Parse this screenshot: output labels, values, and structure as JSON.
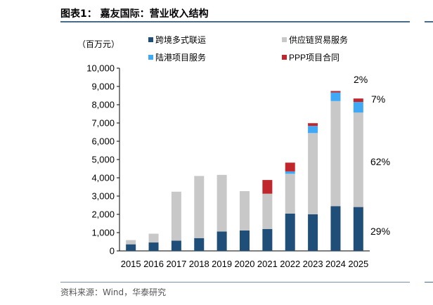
{
  "figure": {
    "title": "图表1：  嘉友国际：营业收入结构",
    "source": "资料来源：Wind，华泰研究"
  },
  "chart_data": {
    "type": "bar",
    "stacked": true,
    "unit_label": "（百万元）",
    "categories": [
      "2015",
      "2016",
      "2017",
      "2018",
      "2019",
      "2020",
      "2021",
      "2022",
      "2023",
      "2024",
      "2025"
    ],
    "ylim": [
      0,
      10000
    ],
    "yticks": [
      0,
      1000,
      2000,
      3000,
      4000,
      5000,
      6000,
      7000,
      8000,
      9000,
      10000
    ],
    "ytick_labels": [
      "0",
      "1,000",
      "2,000",
      "3,000",
      "4,000",
      "5,000",
      "6,000",
      "7,000",
      "8,000",
      "9,000",
      "10,000"
    ],
    "grid": false,
    "legend_position": "top",
    "series": [
      {
        "name": "跨境多式联运",
        "color": "#1f4e79",
        "values": [
          360,
          460,
          560,
          700,
          1060,
          1120,
          1200,
          2040,
          2000,
          2450,
          2400
        ]
      },
      {
        "name": "供应链贸易服务",
        "color": "#c8c8c8",
        "values": [
          230,
          480,
          2680,
          3400,
          3100,
          2150,
          1930,
          2180,
          4450,
          5750,
          5170
        ]
      },
      {
        "name": "陆港项目服务",
        "color": "#3fa9f5",
        "values": [
          0,
          0,
          0,
          0,
          0,
          0,
          0,
          130,
          390,
          470,
          580
        ]
      },
      {
        "name": "PPP项目合同",
        "color": "#c0272d",
        "values": [
          0,
          0,
          0,
          0,
          0,
          0,
          750,
          480,
          150,
          80,
          190
        ]
      }
    ],
    "annotations": [
      {
        "text": "2%",
        "series": "PPP项目合同",
        "year": "2025"
      },
      {
        "text": "7%",
        "series": "陆港项目服务",
        "year": "2025"
      },
      {
        "text": "62%",
        "series": "供应链贸易服务",
        "year": "2025"
      },
      {
        "text": "29%",
        "series": "跨境多式联运",
        "year": "2025"
      }
    ]
  }
}
